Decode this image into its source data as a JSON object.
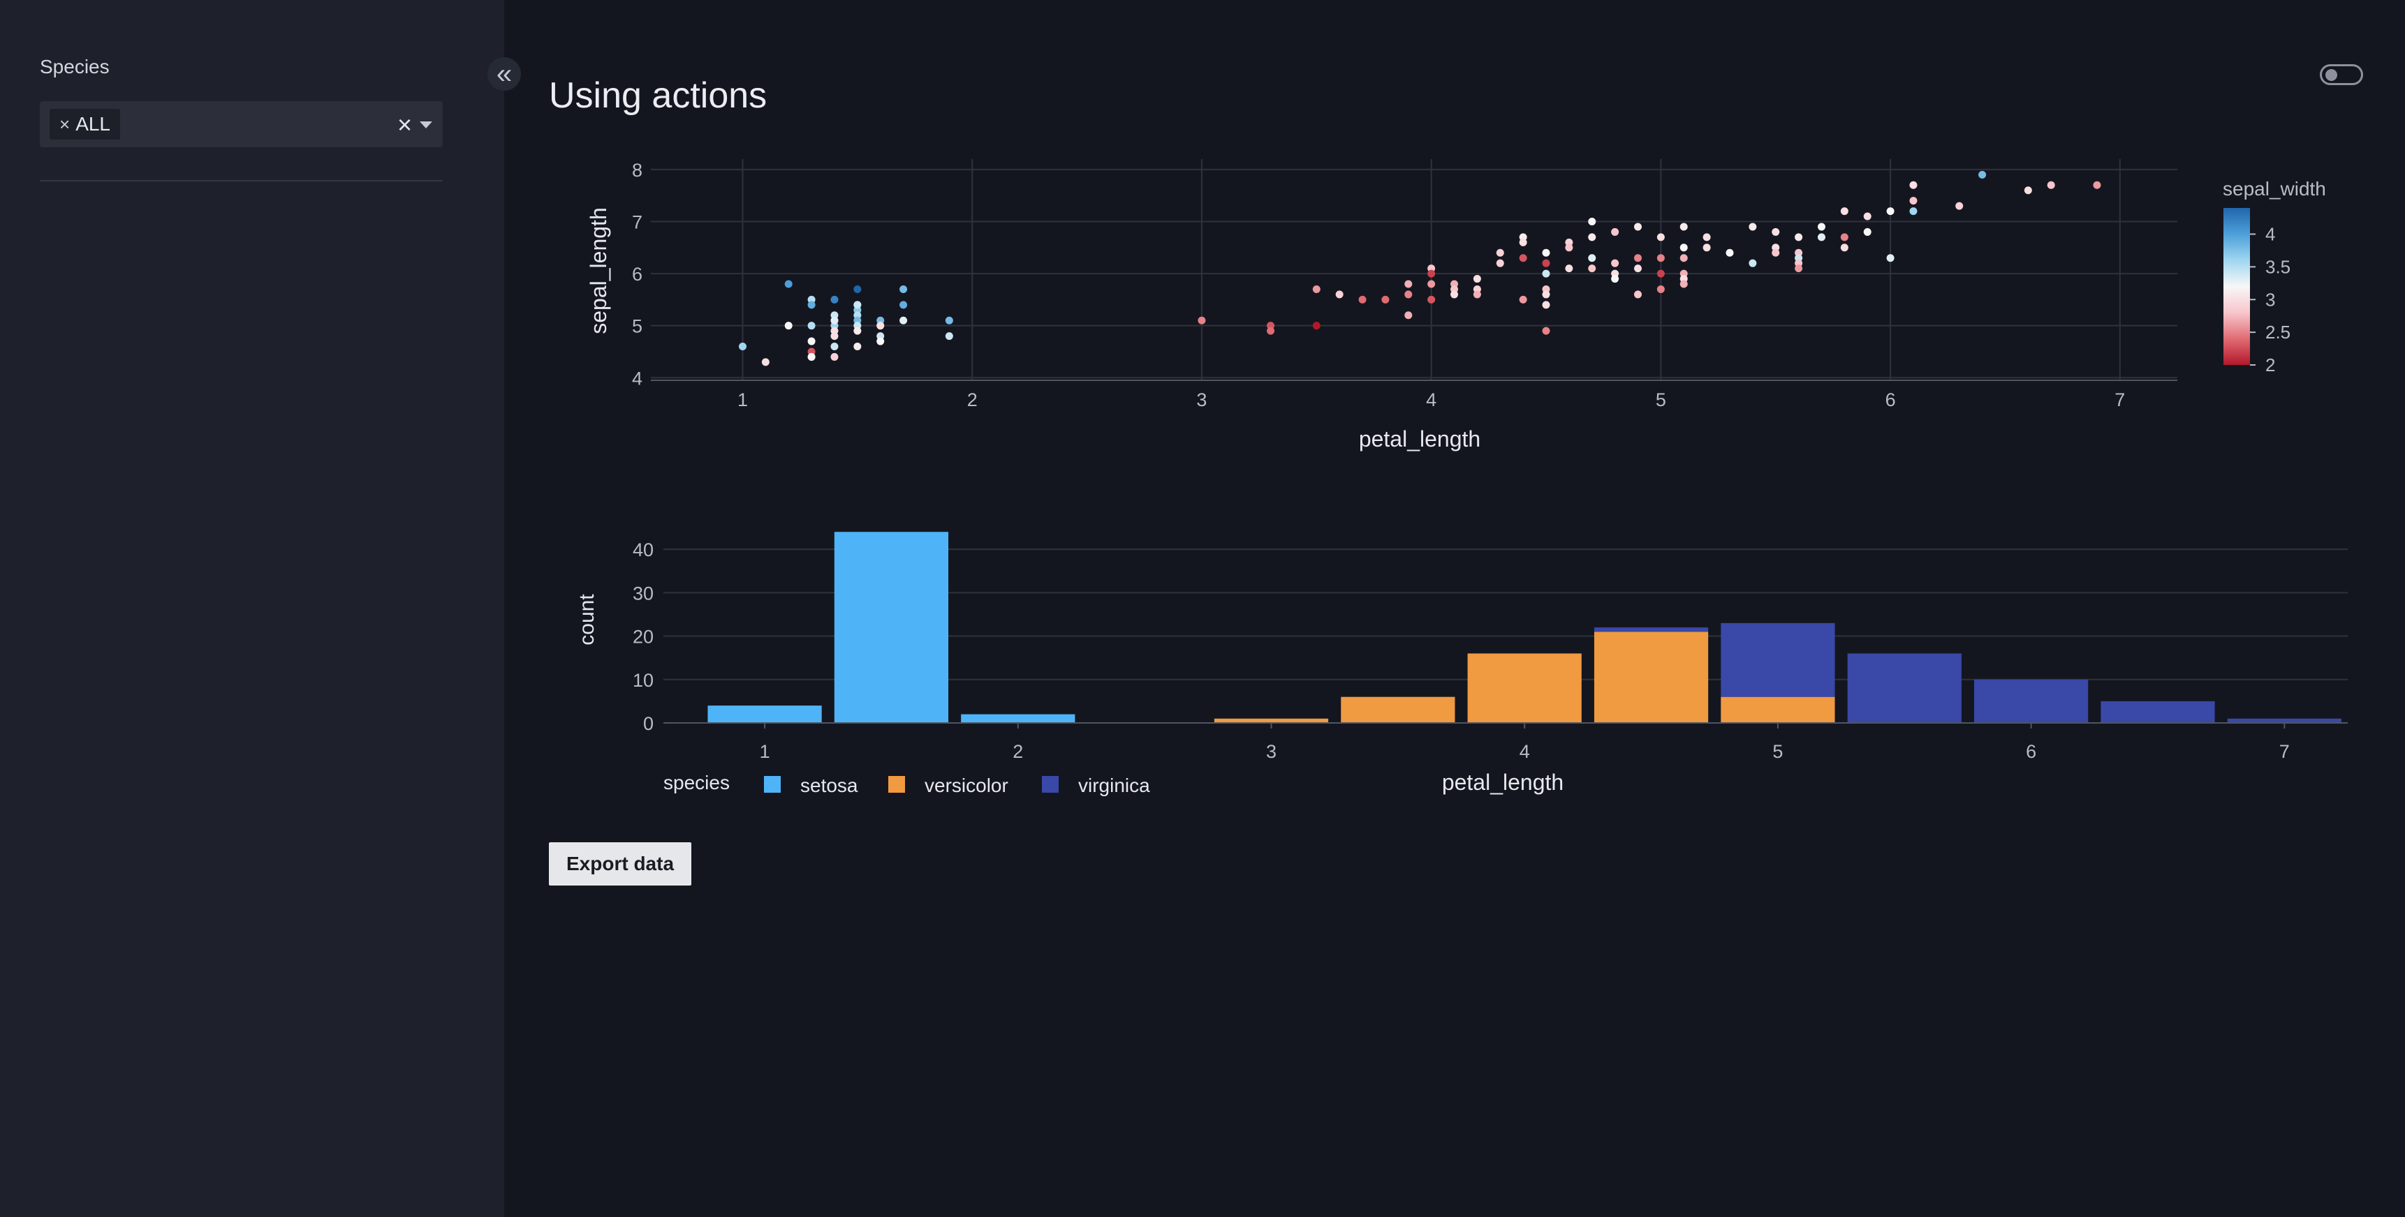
{
  "sidebar": {
    "filter_label": "Species",
    "select": {
      "chip_label": "ALL",
      "chip_remove": "×",
      "clear": "×"
    },
    "collapse_icon": "chevrons-left-icon",
    "collapse_glyph": "«"
  },
  "header": {
    "title": "Using actions",
    "theme_toggle": "toggle-switch-icon"
  },
  "actions": {
    "export_label": "Export data"
  },
  "colors": {
    "background": "#14161f",
    "sidebar": "#1e212b",
    "setosa": "#4fb4f7",
    "versicolor": "#f09a41",
    "virginica": "#3a48a8"
  },
  "chart_data": [
    {
      "type": "scatter",
      "xlabel": "petal_length",
      "ylabel": "sepal_length",
      "xlim": [
        0.6,
        7.25
      ],
      "ylim": [
        3.95,
        8.2
      ],
      "xticks": [
        1,
        2,
        3,
        4,
        5,
        6,
        7
      ],
      "yticks": [
        4,
        5,
        6,
        7,
        8
      ],
      "grid": true,
      "colorbar": {
        "title": "sepal_width",
        "range": [
          2,
          4.4
        ],
        "ticks": [
          "2",
          "2.5",
          "3",
          "3.5",
          "4"
        ],
        "tick_values": [
          2,
          2.5,
          3,
          3.5,
          4
        ],
        "colors": [
          "#b2182b",
          "#e06b73",
          "#f7c6cc",
          "#f7f7f7",
          "#9fd6f0",
          "#4d9fd9",
          "#2166ac"
        ]
      },
      "points": [
        [
          1.0,
          4.6,
          3.6
        ],
        [
          1.1,
          4.3,
          3.0
        ],
        [
          1.2,
          5.8,
          4.0
        ],
        [
          1.2,
          5.0,
          3.2
        ],
        [
          1.3,
          5.5,
          3.5
        ],
        [
          1.3,
          5.4,
          3.9
        ],
        [
          1.3,
          5.0,
          3.5
        ],
        [
          1.3,
          4.5,
          2.3
        ],
        [
          1.3,
          4.4,
          3.0
        ],
        [
          1.3,
          4.4,
          3.2
        ],
        [
          1.3,
          4.7,
          3.2
        ],
        [
          1.4,
          5.2,
          3.4
        ],
        [
          1.4,
          5.1,
          3.5
        ],
        [
          1.4,
          5.0,
          3.6
        ],
        [
          1.4,
          4.9,
          3.0
        ],
        [
          1.4,
          4.6,
          3.4
        ],
        [
          1.4,
          4.4,
          2.9
        ],
        [
          1.4,
          4.8,
          3.0
        ],
        [
          1.4,
          5.1,
          3.3
        ],
        [
          1.4,
          5.5,
          4.2
        ],
        [
          1.5,
          5.7,
          4.4
        ],
        [
          1.5,
          5.4,
          3.7
        ],
        [
          1.5,
          5.3,
          3.7
        ],
        [
          1.5,
          5.2,
          3.5
        ],
        [
          1.5,
          5.1,
          3.8
        ],
        [
          1.5,
          5.0,
          3.4
        ],
        [
          1.5,
          4.9,
          3.1
        ],
        [
          1.5,
          4.6,
          3.1
        ],
        [
          1.5,
          5.4,
          3.4
        ],
        [
          1.6,
          5.1,
          3.8
        ],
        [
          1.6,
          5.0,
          3.5
        ],
        [
          1.6,
          4.8,
          3.4
        ],
        [
          1.6,
          4.7,
          3.2
        ],
        [
          1.6,
          5.0,
          3.0
        ],
        [
          1.7,
          5.7,
          3.8
        ],
        [
          1.7,
          5.4,
          3.9
        ],
        [
          1.7,
          5.1,
          3.3
        ],
        [
          1.9,
          5.1,
          3.8
        ],
        [
          1.9,
          4.8,
          3.4
        ],
        [
          3.0,
          5.1,
          2.5
        ],
        [
          3.3,
          5.0,
          2.3
        ],
        [
          3.3,
          4.9,
          2.4
        ],
        [
          3.5,
          5.7,
          2.6
        ],
        [
          3.5,
          5.0,
          2.0
        ],
        [
          3.6,
          5.6,
          2.9
        ],
        [
          3.7,
          5.5,
          2.4
        ],
        [
          3.8,
          5.5,
          2.4
        ],
        [
          3.9,
          5.8,
          2.7
        ],
        [
          3.9,
          5.6,
          2.5
        ],
        [
          3.9,
          5.2,
          2.7
        ],
        [
          4.0,
          6.1,
          2.8
        ],
        [
          4.0,
          6.0,
          2.2
        ],
        [
          4.0,
          5.8,
          2.6
        ],
        [
          4.0,
          5.5,
          2.3
        ],
        [
          4.1,
          5.8,
          2.7
        ],
        [
          4.1,
          5.7,
          2.8
        ],
        [
          4.1,
          5.6,
          3.0
        ],
        [
          4.2,
          5.9,
          3.0
        ],
        [
          4.2,
          5.7,
          2.9
        ],
        [
          4.2,
          5.6,
          2.7
        ],
        [
          4.3,
          6.4,
          2.9
        ],
        [
          4.3,
          6.2,
          2.9
        ],
        [
          4.4,
          6.7,
          3.1
        ],
        [
          4.4,
          6.6,
          3.0
        ],
        [
          4.4,
          6.3,
          2.3
        ],
        [
          4.4,
          5.5,
          2.6
        ],
        [
          4.5,
          6.4,
          3.2
        ],
        [
          4.5,
          6.2,
          2.2
        ],
        [
          4.5,
          6.0,
          3.4
        ],
        [
          4.5,
          5.7,
          2.8
        ],
        [
          4.5,
          5.6,
          3.0
        ],
        [
          4.5,
          5.4,
          3.0
        ],
        [
          4.5,
          4.9,
          2.5
        ],
        [
          4.6,
          6.6,
          2.9
        ],
        [
          4.6,
          6.5,
          2.8
        ],
        [
          4.6,
          6.1,
          3.0
        ],
        [
          4.7,
          7.0,
          3.2
        ],
        [
          4.7,
          6.7,
          3.1
        ],
        [
          4.7,
          6.3,
          3.3
        ],
        [
          4.7,
          6.1,
          2.8
        ],
        [
          4.8,
          6.8,
          2.8
        ],
        [
          4.8,
          6.0,
          3.0
        ],
        [
          4.8,
          5.9,
          3.2
        ],
        [
          4.8,
          6.2,
          2.8
        ],
        [
          4.9,
          6.9,
          3.1
        ],
        [
          4.9,
          6.3,
          2.5
        ],
        [
          4.9,
          6.1,
          3.0
        ],
        [
          4.9,
          5.6,
          2.8
        ],
        [
          5.0,
          6.7,
          3.0
        ],
        [
          5.0,
          6.3,
          2.5
        ],
        [
          5.0,
          6.0,
          2.2
        ],
        [
          5.0,
          5.7,
          2.5
        ],
        [
          5.1,
          6.9,
          3.1
        ],
        [
          5.1,
          6.5,
          3.2
        ],
        [
          5.1,
          6.3,
          2.7
        ],
        [
          5.1,
          6.0,
          2.7
        ],
        [
          5.1,
          5.9,
          3.0
        ],
        [
          5.1,
          5.8,
          2.7
        ],
        [
          5.2,
          6.7,
          3.0
        ],
        [
          5.2,
          6.5,
          3.0
        ],
        [
          5.3,
          6.4,
          3.2
        ],
        [
          5.4,
          6.9,
          3.1
        ],
        [
          5.4,
          6.2,
          3.4
        ],
        [
          5.5,
          6.8,
          3.0
        ],
        [
          5.5,
          6.5,
          3.0
        ],
        [
          5.5,
          6.4,
          2.8
        ],
        [
          5.6,
          6.7,
          3.1
        ],
        [
          5.6,
          6.4,
          2.8
        ],
        [
          5.6,
          6.3,
          3.4
        ],
        [
          5.6,
          6.2,
          2.8
        ],
        [
          5.6,
          6.1,
          2.6
        ],
        [
          5.7,
          6.9,
          3.2
        ],
        [
          5.7,
          6.7,
          3.3
        ],
        [
          5.8,
          7.2,
          3.0
        ],
        [
          5.8,
          6.7,
          2.5
        ],
        [
          5.8,
          6.5,
          3.0
        ],
        [
          5.9,
          7.1,
          3.0
        ],
        [
          5.9,
          6.8,
          3.2
        ],
        [
          6.0,
          7.2,
          3.2
        ],
        [
          6.0,
          6.3,
          3.3
        ],
        [
          6.1,
          7.7,
          3.0
        ],
        [
          6.1,
          7.4,
          2.8
        ],
        [
          6.1,
          7.2,
          3.6
        ],
        [
          6.3,
          7.3,
          2.9
        ],
        [
          6.4,
          7.9,
          3.8
        ],
        [
          6.6,
          7.6,
          3.0
        ],
        [
          6.7,
          7.7,
          2.8
        ],
        [
          6.9,
          7.7,
          2.6
        ]
      ]
    },
    {
      "type": "bar",
      "barmode": "stack",
      "xlabel": "petal_length",
      "ylabel": "count",
      "xlim": [
        0.6,
        7.25
      ],
      "ylim": [
        0,
        45
      ],
      "xticks": [
        1,
        2,
        3,
        4,
        5,
        6,
        7
      ],
      "yticks": [
        0,
        10,
        20,
        30,
        40
      ],
      "bin_width": 0.5,
      "bin_centers": [
        1.0,
        1.5,
        2.0,
        2.5,
        3.0,
        3.5,
        4.0,
        4.5,
        5.0,
        5.5,
        6.0,
        6.5,
        7.0
      ],
      "legend": {
        "title": "species",
        "placement": "bottom-left"
      },
      "series": [
        {
          "name": "setosa",
          "values": [
            4,
            44,
            2,
            0,
            0,
            0,
            0,
            0,
            0,
            0,
            0,
            0,
            0
          ]
        },
        {
          "name": "versicolor",
          "values": [
            0,
            0,
            0,
            0,
            1,
            6,
            16,
            21,
            6,
            0,
            0,
            0,
            0
          ]
        },
        {
          "name": "virginica",
          "values": [
            0,
            0,
            0,
            0,
            0,
            0,
            0,
            1,
            17,
            16,
            10,
            5,
            1
          ]
        }
      ]
    }
  ]
}
